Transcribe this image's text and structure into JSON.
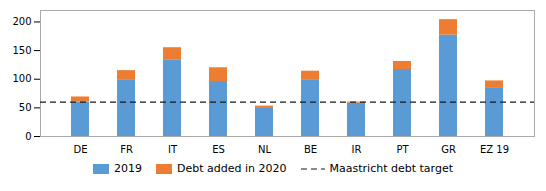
{
  "chart_data": {
    "type": "bar",
    "stacked": true,
    "categories": [
      "DE",
      "FR",
      "IT",
      "ES",
      "NL",
      "BE",
      "IR",
      "PT",
      "GR",
      "EZ 19"
    ],
    "series": [
      {
        "name": "2019",
        "color": "#5B9BD5",
        "values": [
          60,
          98,
          133,
          96,
          49,
          98,
          58,
          117,
          177,
          84
        ]
      },
      {
        "name": "Debt added in 2020",
        "color": "#ED7D31",
        "values": [
          9,
          17,
          22,
          24,
          4,
          16,
          2,
          14,
          27,
          13
        ]
      }
    ],
    "reference_line": {
      "name": "Maastricht debt target",
      "value": 60,
      "color": "#1a1a1a",
      "line_style": "dashed"
    },
    "ylim": [
      0,
      220
    ],
    "yticks": [
      0,
      50,
      100,
      150,
      200
    ],
    "grid": false,
    "legend": "bottom"
  }
}
